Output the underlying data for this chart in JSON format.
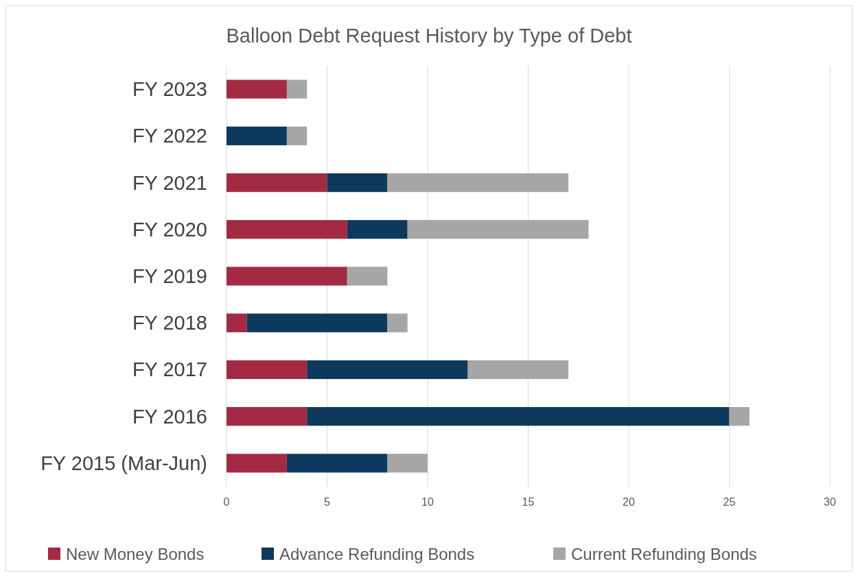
{
  "chart_data": {
    "type": "bar",
    "orientation": "horizontal",
    "stacked": true,
    "title": "Balloon Debt Request History by Type of Debt",
    "categories": [
      "FY 2023",
      "FY 2022",
      "FY 2021",
      "FY 2020",
      "FY 2019",
      "FY 2018",
      "FY 2017",
      "FY 2016",
      "FY 2015 (Mar-Jun)"
    ],
    "series": [
      {
        "name": "New Money Bonds",
        "color": "#a32a43",
        "values": [
          3,
          0,
          5,
          6,
          6,
          1,
          4,
          4,
          3
        ]
      },
      {
        "name": "Advance Refunding Bonds",
        "color": "#0d3a5c",
        "values": [
          0,
          3,
          3,
          3,
          0,
          7,
          8,
          21,
          5
        ]
      },
      {
        "name": "Current Refunding Bonds",
        "color": "#a6a6a6",
        "values": [
          1,
          1,
          9,
          9,
          2,
          1,
          5,
          1,
          2
        ]
      }
    ],
    "xlim": [
      0,
      30
    ],
    "xticks": [
      0,
      5,
      10,
      15,
      20,
      25,
      30
    ],
    "grid": "x",
    "legend": "bottom"
  }
}
